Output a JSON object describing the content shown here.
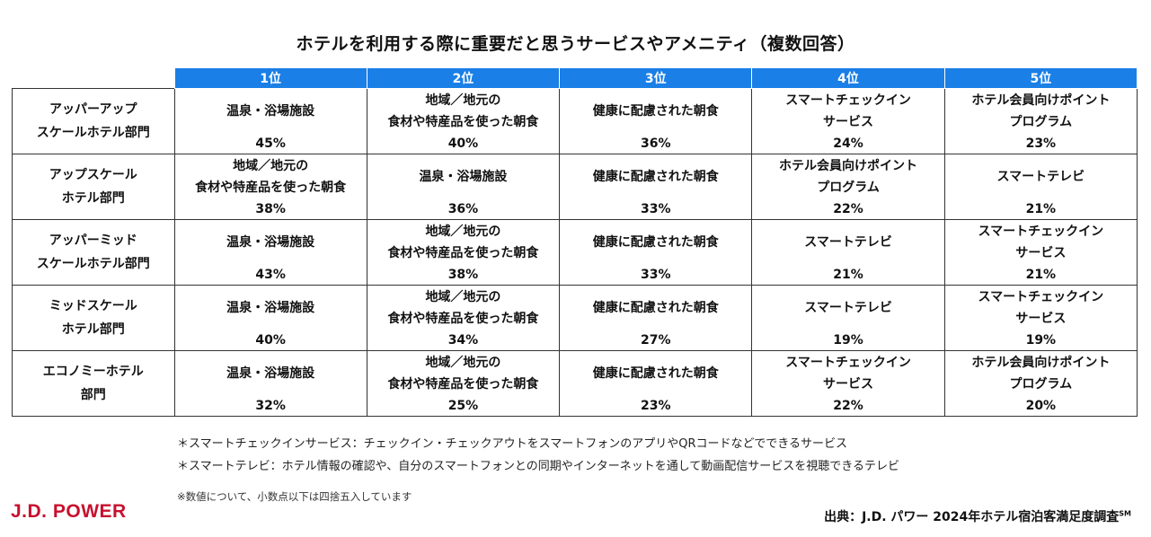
{
  "title": "ホテルを利用する際に重要だと思うサービスやアメニティ（複数回答）",
  "colors": {
    "header_bg": "#1a7fe6",
    "brand": "#c8102e"
  },
  "chart_data": {
    "type": "table",
    "title": "ホテルを利用する際に重要だと思うサービスやアメニティ（複数回答）",
    "columns": [
      "1位",
      "2位",
      "3位",
      "4位",
      "5位"
    ],
    "rows": [
      {
        "label_lines": [
          "アッパーアップ",
          "スケールホテル部門"
        ],
        "cells": [
          {
            "item": [
              "温泉・浴場施設"
            ],
            "pct": "45%"
          },
          {
            "item": [
              "地域／地元の",
              "食材や特産品を使った朝食"
            ],
            "pct": "40%"
          },
          {
            "item": [
              "健康に配慮された朝食"
            ],
            "pct": "36%"
          },
          {
            "item": [
              "スマートチェックイン",
              "サービス"
            ],
            "pct": "24%"
          },
          {
            "item": [
              "ホテル会員向けポイント",
              "プログラム"
            ],
            "pct": "23%"
          }
        ]
      },
      {
        "label_lines": [
          "アップスケール",
          "ホテル部門"
        ],
        "cells": [
          {
            "item": [
              "地域／地元の",
              "食材や特産品を使った朝食"
            ],
            "pct": "38%"
          },
          {
            "item": [
              "温泉・浴場施設"
            ],
            "pct": "36%"
          },
          {
            "item": [
              "健康に配慮された朝食"
            ],
            "pct": "33%"
          },
          {
            "item": [
              "ホテル会員向けポイント",
              "プログラム"
            ],
            "pct": "22%"
          },
          {
            "item": [
              "スマートテレビ"
            ],
            "pct": "21%"
          }
        ]
      },
      {
        "label_lines": [
          "アッパーミッド",
          "スケールホテル部門"
        ],
        "cells": [
          {
            "item": [
              "温泉・浴場施設"
            ],
            "pct": "43%"
          },
          {
            "item": [
              "地域／地元の",
              "食材や特産品を使った朝食"
            ],
            "pct": "38%"
          },
          {
            "item": [
              "健康に配慮された朝食"
            ],
            "pct": "33%"
          },
          {
            "item": [
              "スマートテレビ"
            ],
            "pct": "21%"
          },
          {
            "item": [
              "スマートチェックイン",
              "サービス"
            ],
            "pct": "21%"
          }
        ]
      },
      {
        "label_lines": [
          "ミッドスケール",
          "ホテル部門"
        ],
        "cells": [
          {
            "item": [
              "温泉・浴場施設"
            ],
            "pct": "40%"
          },
          {
            "item": [
              "地域／地元の",
              "食材や特産品を使った朝食"
            ],
            "pct": "34%"
          },
          {
            "item": [
              "健康に配慮された朝食"
            ],
            "pct": "27%"
          },
          {
            "item": [
              "スマートテレビ"
            ],
            "pct": "19%"
          },
          {
            "item": [
              "スマートチェックイン",
              "サービス"
            ],
            "pct": "19%"
          }
        ]
      },
      {
        "label_lines": [
          "エコノミーホテル",
          "部門"
        ],
        "cells": [
          {
            "item": [
              "温泉・浴場施設"
            ],
            "pct": "32%"
          },
          {
            "item": [
              "地域／地元の",
              "食材や特産品を使った朝食"
            ],
            "pct": "25%"
          },
          {
            "item": [
              "健康に配慮された朝食"
            ],
            "pct": "23%"
          },
          {
            "item": [
              "スマートチェックイン",
              "サービス"
            ],
            "pct": "22%"
          },
          {
            "item": [
              "ホテル会員向けポイント",
              "プログラム"
            ],
            "pct": "20%"
          }
        ]
      }
    ]
  },
  "footnotes": [
    "＊スマートチェックインサービス：チェックイン・チェックアウトをスマートフォンのアプリやQRコードなどでできるサービス",
    "＊スマートテレビ：ホテル情報の確認や、自分のスマートフォンとの同期やインターネットを通して動画配信サービスを視聴できるテレビ"
  ],
  "rounding_note": "※数値について、小数点以下は四捨五入しています",
  "logo_text": "J.D. POWER",
  "source": {
    "text": "出典：J.D. パワー 2024年ホテル宿泊客満足度調査",
    "mark": "SM"
  }
}
